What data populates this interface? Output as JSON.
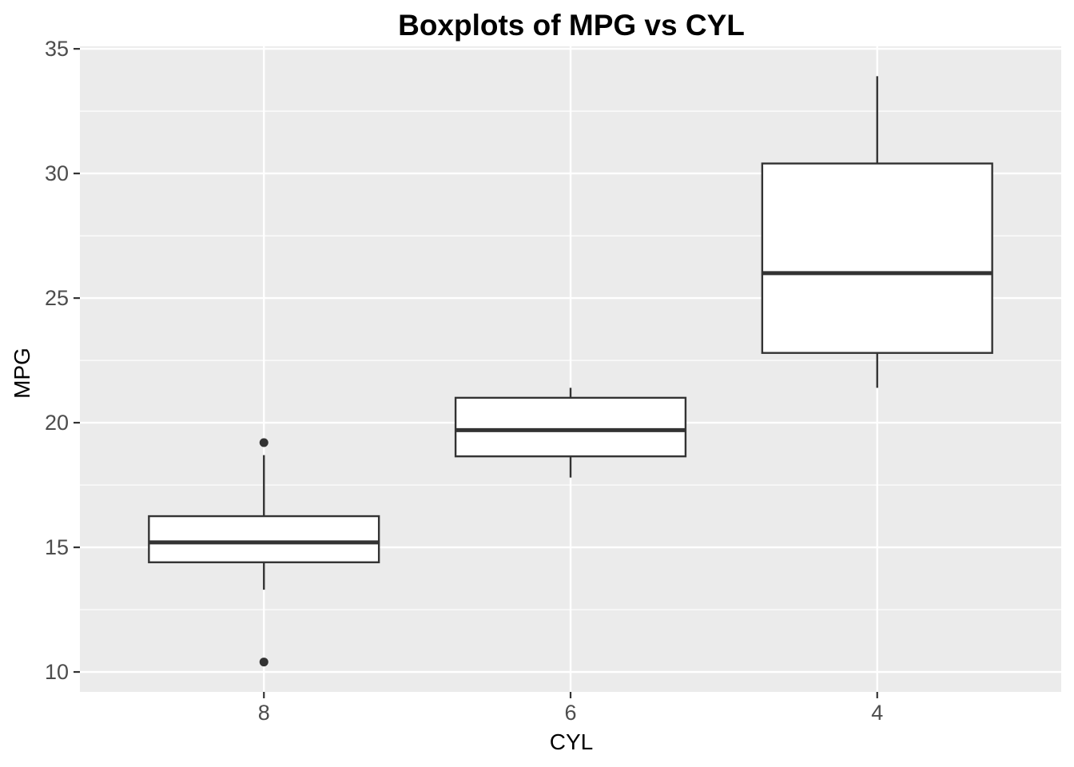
{
  "chart_data": {
    "type": "boxplot",
    "title": "Boxplots of MPG vs CYL",
    "xlabel": "CYL",
    "ylabel": "MPG",
    "categories": [
      "8",
      "6",
      "4"
    ],
    "ylim": [
      9.2,
      35.1
    ],
    "yticks": [
      10,
      15,
      20,
      25,
      30,
      35
    ],
    "y_minor_ticks": [
      12.5,
      17.5,
      22.5,
      27.5,
      32.5
    ],
    "grid": true,
    "legend": "none",
    "panel_color": "#ebebeb",
    "box_color": "#333333",
    "boxes": [
      {
        "category": "8",
        "whisker_low": 13.3,
        "q1": 14.4,
        "median": 15.2,
        "q3": 16.25,
        "whisker_high": 18.7,
        "outliers": [
          19.2,
          10.4
        ]
      },
      {
        "category": "6",
        "whisker_low": 17.8,
        "q1": 18.65,
        "median": 19.7,
        "q3": 21.0,
        "whisker_high": 21.4,
        "outliers": []
      },
      {
        "category": "4",
        "whisker_low": 21.4,
        "q1": 22.8,
        "median": 26.0,
        "q3": 30.4,
        "whisker_high": 33.9,
        "outliers": []
      }
    ]
  }
}
